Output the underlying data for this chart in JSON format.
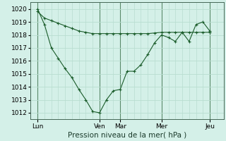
{
  "background_color": "#d4f0e8",
  "plot_bg_color": "#d4f0e8",
  "grid_color": "#b8ddd0",
  "vline_color": "#5a8a6a",
  "line_color": "#1a5c2a",
  "xlabel": "Pression niveau de la mer( hPa )",
  "ylim": [
    1011.5,
    1020.5
  ],
  "yticks": [
    1012,
    1013,
    1014,
    1015,
    1016,
    1017,
    1018,
    1019,
    1020
  ],
  "xlim": [
    0,
    28
  ],
  "xtick_labels": [
    "Lun",
    "Ven",
    "Mar",
    "Mer",
    "Jeu"
  ],
  "xtick_positions": [
    1,
    10,
    13,
    19,
    26
  ],
  "vline_positions": [
    1,
    10,
    13,
    19,
    26
  ],
  "line1_x": [
    1,
    2,
    3,
    4,
    5,
    6,
    7,
    8,
    9,
    10,
    11,
    12,
    13,
    14,
    15,
    16,
    17,
    18,
    19,
    20,
    21,
    22,
    23,
    24,
    25,
    26
  ],
  "line1_y": [
    1019.8,
    1019.3,
    1019.1,
    1018.9,
    1018.7,
    1018.5,
    1018.3,
    1018.2,
    1018.1,
    1018.1,
    1018.1,
    1018.1,
    1018.1,
    1018.1,
    1018.1,
    1018.1,
    1018.1,
    1018.15,
    1018.2,
    1018.2,
    1018.2,
    1018.2,
    1018.2,
    1018.2,
    1018.2,
    1018.2
  ],
  "line2_x": [
    1,
    2,
    3,
    4,
    5,
    6,
    7,
    8,
    9,
    10,
    11,
    12,
    13,
    14,
    15,
    16,
    17,
    18,
    19,
    20,
    21,
    22,
    23,
    24,
    25,
    26
  ],
  "line2_y": [
    1020.0,
    1018.8,
    1017.0,
    1016.2,
    1015.4,
    1014.7,
    1013.8,
    1013.0,
    1012.1,
    1012.0,
    1013.0,
    1013.7,
    1013.8,
    1015.2,
    1015.2,
    1015.7,
    1016.5,
    1017.4,
    1018.0,
    1017.8,
    1017.5,
    1018.2,
    1017.5,
    1018.8,
    1019.0,
    1018.3
  ],
  "xlabel_fontsize": 7.5,
  "tick_fontsize": 6.5
}
